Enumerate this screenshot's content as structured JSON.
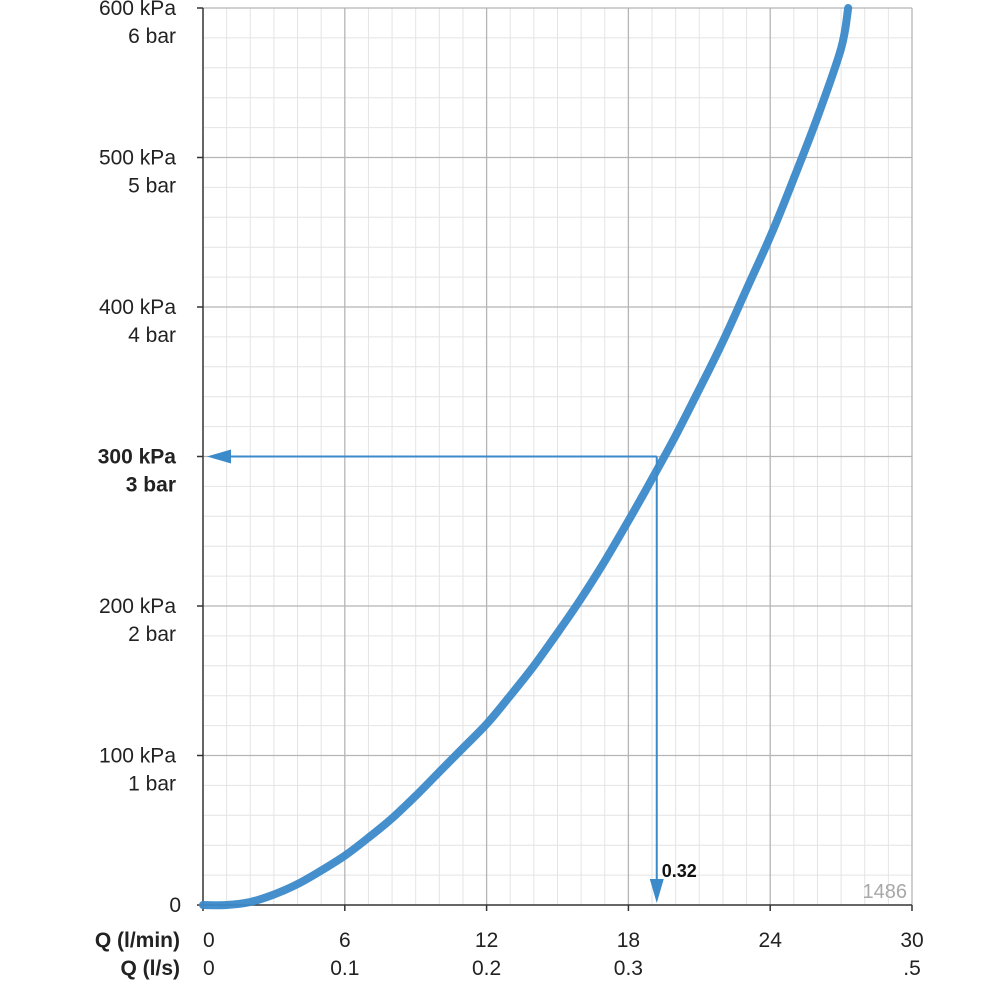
{
  "chart_data": {
    "type": "line",
    "title": "",
    "xlabel_primary": "Q (l/min)",
    "xlabel_secondary": "Q (l/s)",
    "xlim": [
      0,
      30
    ],
    "ylim": [
      0,
      600
    ],
    "x_ticks": [
      {
        "value": 0,
        "label": "0",
        "secondary": "0"
      },
      {
        "value": 6,
        "label": "6",
        "secondary": "0.1"
      },
      {
        "value": 12,
        "label": "12",
        "secondary": "0.2"
      },
      {
        "value": 18,
        "label": "18",
        "secondary": "0.3"
      },
      {
        "value": 24,
        "label": "24",
        "secondary": ""
      },
      {
        "value": 30,
        "label": "30",
        "secondary": ".5"
      }
    ],
    "y_ticks": [
      {
        "value": 0,
        "kpa": "0",
        "bar": "",
        "bold": false
      },
      {
        "value": 100,
        "kpa": "100 kPa",
        "bar": "1 bar",
        "bold": false
      },
      {
        "value": 200,
        "kpa": "200 kPa",
        "bar": "2 bar",
        "bold": false
      },
      {
        "value": 300,
        "kpa": "300 kPa",
        "bar": "3 bar",
        "bold": true
      },
      {
        "value": 400,
        "kpa": "400 kPa",
        "bar": "4 bar",
        "bold": false
      },
      {
        "value": 500,
        "kpa": "500 kPa",
        "bar": "5 bar",
        "bold": false
      },
      {
        "value": 600,
        "kpa": "600 kPa",
        "bar": "6 bar",
        "bold": false
      }
    ],
    "series": [
      {
        "x": [
          0,
          1,
          2,
          3,
          4,
          5,
          6,
          7,
          8,
          9,
          10,
          11,
          12,
          13,
          14,
          15,
          16,
          17,
          18,
          19,
          20,
          21,
          22,
          23,
          24,
          25,
          26,
          27,
          27.3
        ],
        "y": [
          0,
          0,
          2,
          7,
          14,
          23,
          33,
          45,
          58,
          73,
          89,
          105,
          121,
          140,
          160,
          182,
          205,
          230,
          257,
          285,
          314,
          345,
          377,
          412,
          447,
          486,
          527,
          573,
          600
        ]
      }
    ],
    "annotation": {
      "label": "0.32",
      "x": 19.2,
      "y": 300
    },
    "grid": true,
    "minor_grid": true,
    "legend": "none"
  },
  "watermark": "1486",
  "colors": {
    "curve": "#3b8ac9",
    "arrow": "#3b8ac9",
    "major_grid": "#b5b5b5",
    "minor_grid": "#e4e4e4",
    "axis": "#333333"
  }
}
